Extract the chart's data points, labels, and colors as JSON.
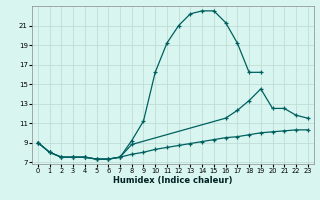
{
  "xlabel": "Humidex (Indice chaleur)",
  "bg_color": "#d8f5f0",
  "grid_color": "#c0ddd8",
  "line_color": "#006060",
  "xlim": [
    -0.5,
    23.5
  ],
  "ylim": [
    6.8,
    23.0
  ],
  "xticks": [
    0,
    1,
    2,
    3,
    4,
    5,
    6,
    7,
    8,
    9,
    10,
    11,
    12,
    13,
    14,
    15,
    16,
    17,
    18,
    19,
    20,
    21,
    22,
    23
  ],
  "yticks": [
    7,
    9,
    11,
    13,
    15,
    17,
    19,
    21
  ],
  "line1_x": [
    0,
    1,
    2,
    3,
    4,
    5,
    6,
    7,
    8,
    9,
    10,
    11,
    12,
    13,
    14,
    15,
    16,
    17,
    18,
    19
  ],
  "line1_y": [
    9.0,
    8.0,
    7.5,
    7.5,
    7.5,
    7.3,
    7.3,
    7.5,
    9.2,
    11.2,
    16.2,
    19.2,
    21.0,
    22.2,
    22.5,
    22.5,
    21.3,
    19.2,
    16.2,
    16.2
  ],
  "line2_x": [
    0,
    1,
    2,
    3,
    4,
    5,
    6,
    7,
    8,
    16,
    17,
    18,
    19,
    20,
    21,
    22,
    23
  ],
  "line2_y": [
    9.0,
    8.0,
    7.5,
    7.5,
    7.5,
    7.3,
    7.3,
    7.5,
    8.8,
    11.5,
    12.3,
    13.3,
    14.5,
    12.5,
    12.5,
    11.8,
    11.5
  ],
  "line3_x": [
    0,
    1,
    2,
    3,
    4,
    5,
    6,
    7,
    8,
    9,
    10,
    11,
    12,
    13,
    14,
    15,
    16,
    17,
    18,
    19,
    20,
    21,
    22,
    23
  ],
  "line3_y": [
    9.0,
    8.0,
    7.5,
    7.5,
    7.5,
    7.3,
    7.3,
    7.5,
    7.8,
    8.0,
    8.3,
    8.5,
    8.7,
    8.9,
    9.1,
    9.3,
    9.5,
    9.6,
    9.8,
    10.0,
    10.1,
    10.2,
    10.3,
    10.3
  ]
}
